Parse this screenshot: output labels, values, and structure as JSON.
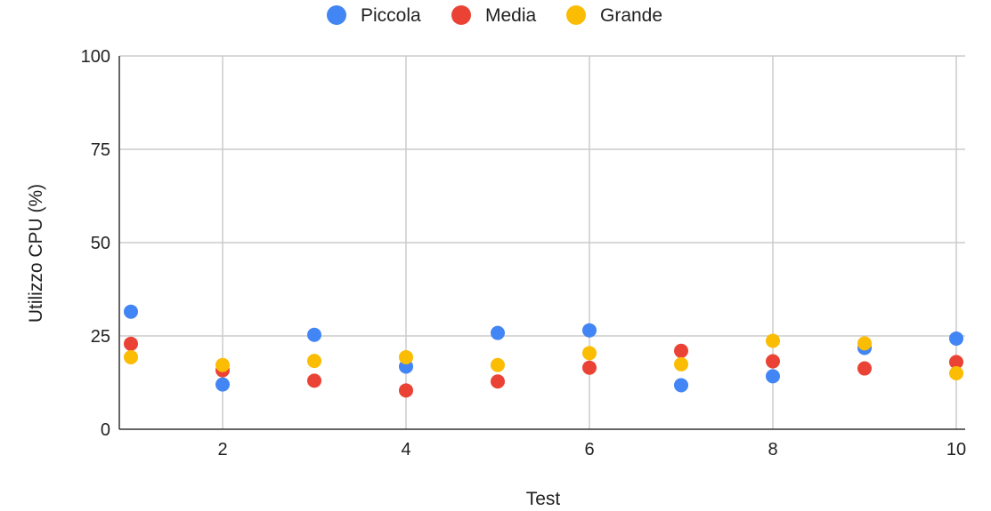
{
  "chart_data": {
    "type": "scatter",
    "xlabel": "Test",
    "ylabel": "Utilizzo CPU (%)",
    "xlim": [
      1,
      10
    ],
    "ylim": [
      0,
      100
    ],
    "xticks": [
      2,
      4,
      6,
      8,
      10
    ],
    "yticks": [
      0,
      25,
      50,
      75,
      100
    ],
    "grid": true,
    "legend": "top-center",
    "x": [
      1,
      2,
      3,
      4,
      5,
      6,
      7,
      8,
      9,
      10
    ],
    "series": [
      {
        "name": "Piccola",
        "color": "#4285F4",
        "values": [
          31.5,
          12,
          25.3,
          16.8,
          25.8,
          26.5,
          11.8,
          14.2,
          21.8,
          24.3
        ]
      },
      {
        "name": "Media",
        "color": "#EA4335",
        "values": [
          22.9,
          15.8,
          13,
          10.4,
          12.8,
          16.5,
          21,
          18.2,
          16.3,
          18
        ]
      },
      {
        "name": "Grande",
        "color": "#FBBC04",
        "values": [
          19.3,
          17.2,
          18.3,
          19.3,
          17.2,
          20.4,
          17.4,
          23.7,
          23,
          15
        ]
      }
    ]
  }
}
